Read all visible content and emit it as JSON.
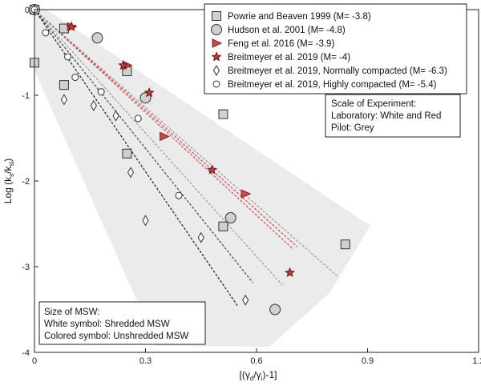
{
  "chart_data": {
    "type": "scatter",
    "xlim": [
      0,
      1.2
    ],
    "ylim": [
      -4,
      0
    ],
    "x_ticks": [
      "0",
      "0.3",
      "0.6",
      "0.9",
      "1.2"
    ],
    "y_ticks": [
      "0",
      "-1",
      "-2",
      "-3",
      "-4"
    ],
    "xlabel": "[(γd/γi)-1]",
    "ylabel": "Log (ks/ksi)",
    "series": [
      {
        "name": "Powrie and Beaven 1999 (M= -3.8)",
        "marker": "square",
        "points": [
          {
            "x": 0.0,
            "y": 0.0,
            "fill": "#d0d0d0"
          },
          {
            "x": 0.0,
            "y": -0.62,
            "fill": "#d0d0d0"
          },
          {
            "x": 0.08,
            "y": -0.22,
            "fill": "#d0d0d0"
          },
          {
            "x": 0.08,
            "y": -0.88,
            "fill": "#d0d0d0"
          },
          {
            "x": 0.25,
            "y": -0.72,
            "fill": "#d0d0d0"
          },
          {
            "x": 0.25,
            "y": -1.68,
            "fill": "#d0d0d0"
          },
          {
            "x": 0.51,
            "y": -1.22,
            "fill": "#d0d0d0"
          },
          {
            "x": 0.51,
            "y": -2.53,
            "fill": "#d0d0d0"
          },
          {
            "x": 0.84,
            "y": -2.74,
            "fill": "#d0d0d0"
          }
        ]
      },
      {
        "name": "Hudson et al. 2001 (M= -4.8)",
        "marker": "circle",
        "points": [
          {
            "x": 0.0,
            "y": 0.0,
            "fill": "#d0d0d0"
          },
          {
            "x": 0.17,
            "y": -0.33,
            "fill": "#d0d0d0"
          },
          {
            "x": 0.3,
            "y": -1.03,
            "fill": "#d0d0d0"
          },
          {
            "x": 0.53,
            "y": -2.43,
            "fill": "#d0d0d0"
          },
          {
            "x": 0.65,
            "y": -3.5,
            "fill": "#d0d0d0"
          }
        ]
      },
      {
        "name": "Feng et al. 2016 (M= -3.9)",
        "marker": "triangle",
        "points": [
          {
            "x": 0.1,
            "y": -0.2,
            "fill": "#d64545"
          },
          {
            "x": 0.25,
            "y": -0.65,
            "fill": "#d64545"
          },
          {
            "x": 0.35,
            "y": -1.48,
            "fill": "#d64545"
          },
          {
            "x": 0.57,
            "y": -2.15,
            "fill": "#d64545"
          }
        ]
      },
      {
        "name": "Breitmeyer et al. 2019 (M= -4)",
        "marker": "star",
        "points": [
          {
            "x": 0.1,
            "y": -0.2,
            "fill": "#c43a3a"
          },
          {
            "x": 0.24,
            "y": -0.65,
            "fill": "#c43a3a"
          },
          {
            "x": 0.31,
            "y": -0.97,
            "fill": "#c43a3a"
          },
          {
            "x": 0.48,
            "y": -1.87,
            "fill": "#c43a3a"
          },
          {
            "x": 0.69,
            "y": -3.07,
            "fill": "#c43a3a"
          }
        ]
      },
      {
        "name": "Breitmeyer et al. 2019, Normally compacted (M= -6.3)",
        "marker": "diamond",
        "points": [
          {
            "x": 0.0,
            "y": 0.0,
            "fill": "#ffffff"
          },
          {
            "x": 0.08,
            "y": -1.05,
            "fill": "#ffffff"
          },
          {
            "x": 0.16,
            "y": -1.12,
            "fill": "#ffffff"
          },
          {
            "x": 0.22,
            "y": -1.24,
            "fill": "#ffffff"
          },
          {
            "x": 0.26,
            "y": -1.9,
            "fill": "#ffffff"
          },
          {
            "x": 0.3,
            "y": -2.46,
            "fill": "#ffffff"
          },
          {
            "x": 0.45,
            "y": -2.66,
            "fill": "#ffffff"
          },
          {
            "x": 0.57,
            "y": -3.39,
            "fill": "#ffffff"
          }
        ]
      },
      {
        "name": "Breitmeyer et al. 2019, Highly compacted (M= -5.4)",
        "marker": "small-circle",
        "points": [
          {
            "x": 0.0,
            "y": 0.0,
            "fill": "#ffffff"
          },
          {
            "x": 0.03,
            "y": -0.27,
            "fill": "#ffffff"
          },
          {
            "x": 0.09,
            "y": -0.55,
            "fill": "#ffffff"
          },
          {
            "x": 0.11,
            "y": -0.79,
            "fill": "#ffffff"
          },
          {
            "x": 0.18,
            "y": -0.96,
            "fill": "#ffffff"
          },
          {
            "x": 0.28,
            "y": -1.27,
            "fill": "#ffffff"
          },
          {
            "x": 0.39,
            "y": -2.17,
            "fill": "#ffffff"
          }
        ]
      }
    ],
    "fit_lines": [
      {
        "slope": -4.0,
        "x_end": 0.7,
        "color": "#d04848"
      },
      {
        "slope": -3.9,
        "x_end": 0.71,
        "color": "#d04848"
      },
      {
        "slope": -3.8,
        "x_end": 0.82,
        "color": "#9a9a9a"
      },
      {
        "slope": -4.8,
        "x_end": 0.67,
        "color": "#9a9a9a"
      },
      {
        "slope": -5.4,
        "x_end": 0.59,
        "color": "#444444"
      },
      {
        "slope": -6.3,
        "x_end": 0.55,
        "color": "#222222"
      }
    ],
    "annotations": {
      "scale_box": [
        "Scale of Experiment:",
        "Laboratory: White and Red",
        "Pilot: Grey"
      ],
      "size_box": [
        "Size of MSW:",
        "White symbol: Shredded MSW",
        "Colored symbol: Unshredded MSW"
      ]
    }
  }
}
